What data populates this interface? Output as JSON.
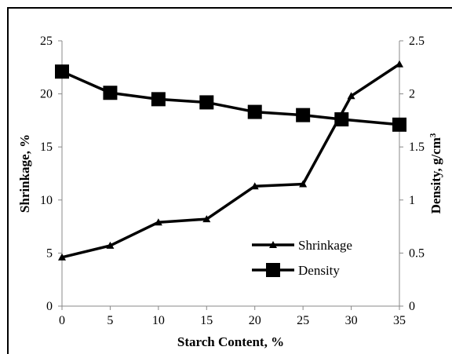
{
  "chart_data": {
    "type": "line",
    "xlabel": "Starch Content, %",
    "ylabel": "Shrinkage, %",
    "y2label_main": "Density, g/cm",
    "y2label_sup": "3",
    "x": [
      0,
      5,
      10,
      15,
      20,
      25,
      30,
      35
    ],
    "x_ticks": [
      "0",
      "5",
      "10",
      "15",
      "20",
      "25",
      "30",
      "35"
    ],
    "xlim": [
      0,
      35
    ],
    "ylim": [
      0,
      25
    ],
    "y_ticks": [
      "0",
      "5",
      "10",
      "15",
      "20",
      "25"
    ],
    "y2lim": [
      0,
      2.5
    ],
    "y2_ticks": [
      "0",
      "0.5",
      "1",
      "1.5",
      "2",
      "2.5"
    ],
    "grid": false,
    "legend_position": "right-center",
    "series": [
      {
        "name": "Shrinkage",
        "axis": "left",
        "marker": "triangle",
        "color": "#000000",
        "x": [
          0,
          5,
          10,
          15,
          20,
          25,
          30,
          35
        ],
        "values": [
          4.6,
          5.7,
          7.9,
          8.2,
          11.3,
          11.5,
          19.8,
          22.8
        ]
      },
      {
        "name": "Density",
        "axis": "right",
        "marker": "square",
        "color": "#000000",
        "x": [
          0,
          5,
          10,
          15,
          20,
          25,
          29,
          35
        ],
        "values": [
          2.21,
          2.01,
          1.95,
          1.92,
          1.83,
          1.8,
          1.76,
          1.71
        ]
      }
    ]
  }
}
